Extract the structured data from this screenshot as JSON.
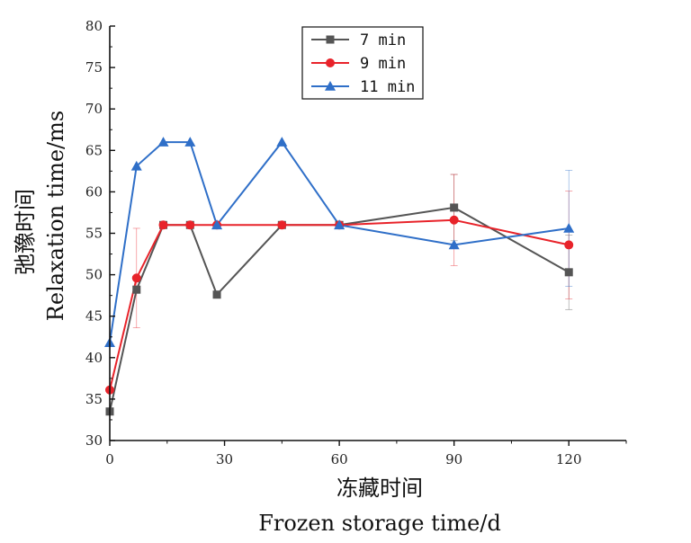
{
  "chart_data": {
    "type": "line",
    "xlabel_cn": "冻藏时间",
    "xlabel": "Frozen storage time/d",
    "ylabel_cn": "弛豫时间",
    "ylabel": "Relaxation time/ms",
    "xlim": [
      0,
      135
    ],
    "ylim": [
      30,
      80
    ],
    "xticks": [
      0,
      30,
      60,
      90,
      120
    ],
    "yticks": [
      30,
      35,
      40,
      45,
      50,
      55,
      60,
      65,
      70,
      75,
      80
    ],
    "legend_position": "top-center",
    "grid": false,
    "series": [
      {
        "name": "7 min",
        "color": "#555555",
        "marker": "square",
        "x": [
          0,
          7,
          14,
          21,
          28,
          45,
          60,
          90,
          120
        ],
        "y": [
          33.5,
          48.2,
          56,
          56,
          47.6,
          56,
          56,
          58.1,
          50.3
        ],
        "err": [
          0,
          0,
          0,
          0,
          0,
          0,
          0,
          4,
          4.5
        ]
      },
      {
        "name": "9 min",
        "color": "#e8232a",
        "marker": "circle",
        "x": [
          0,
          7,
          14,
          21,
          28,
          45,
          60,
          90,
          120
        ],
        "y": [
          36.1,
          49.6,
          56,
          56,
          56,
          56,
          56,
          56.6,
          53.6
        ],
        "err": [
          0,
          6,
          0,
          0,
          0,
          0,
          0,
          5.5,
          6.5
        ]
      },
      {
        "name": "11 min",
        "color": "#2f6fc8",
        "marker": "triangle",
        "x": [
          0,
          7,
          14,
          21,
          28,
          45,
          60,
          90,
          120
        ],
        "y": [
          41.8,
          63.1,
          66,
          66,
          56,
          66,
          56,
          53.6,
          55.6
        ],
        "err": [
          0,
          0,
          0,
          0,
          0,
          0,
          0,
          0,
          7
        ]
      }
    ]
  }
}
